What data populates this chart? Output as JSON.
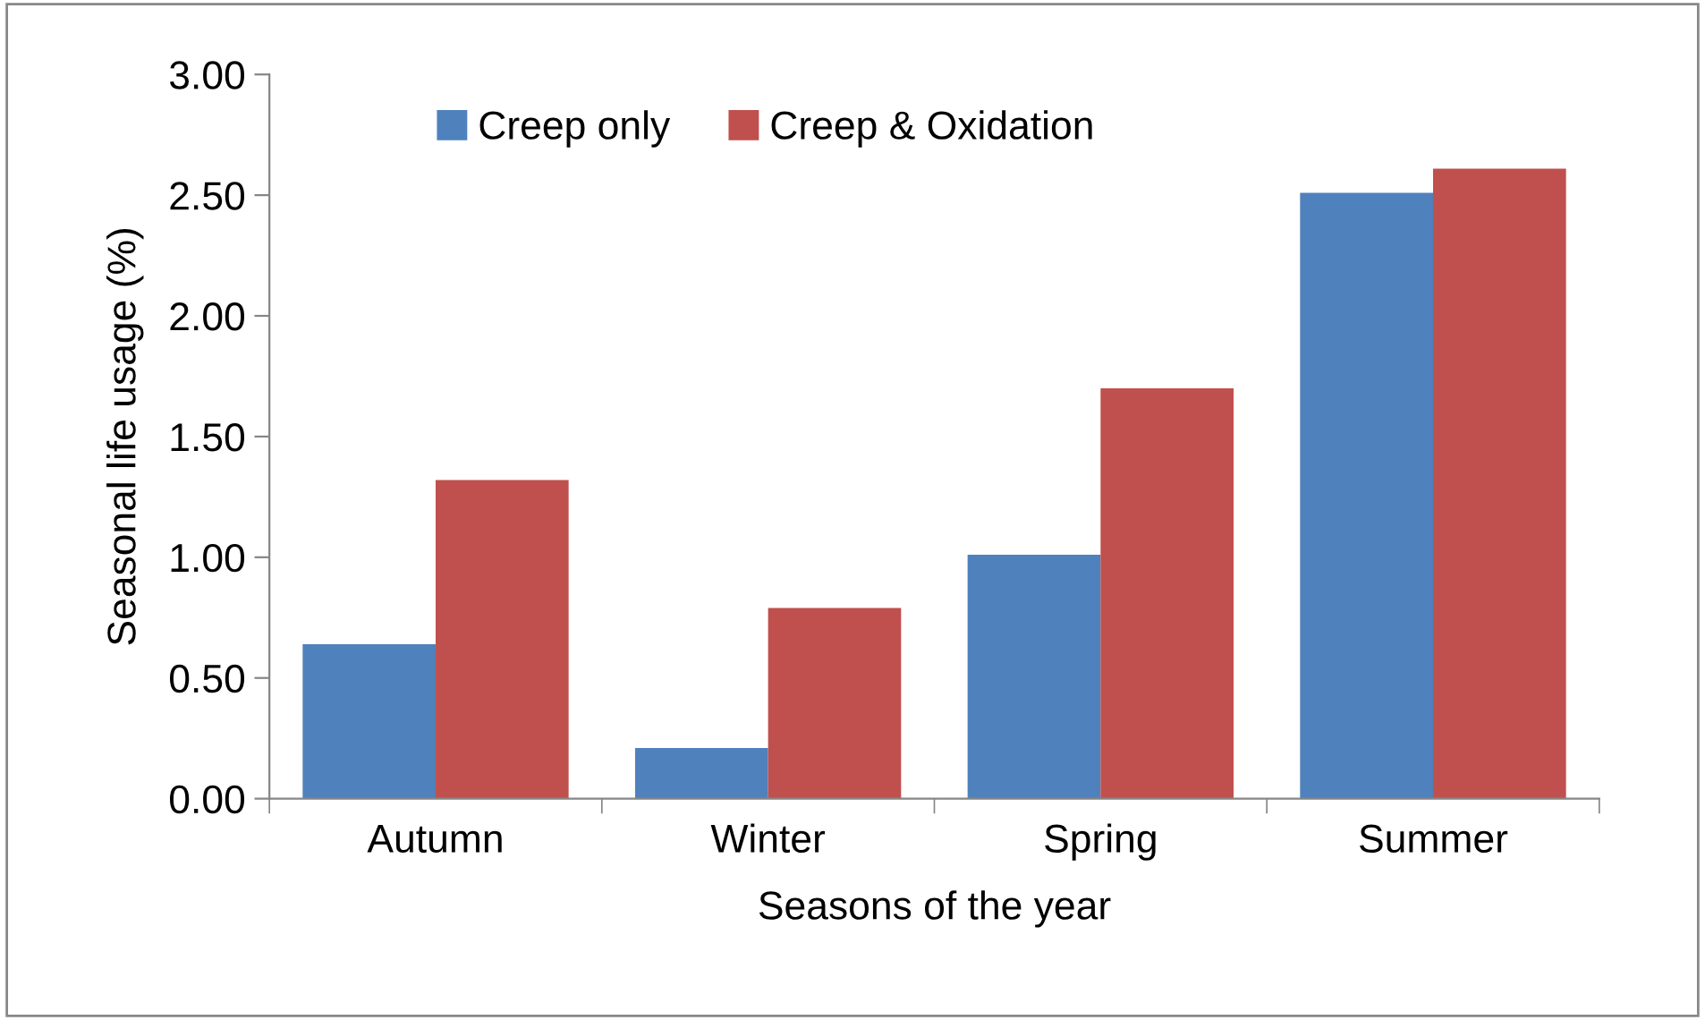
{
  "chart_data": {
    "type": "bar",
    "xlabel": "Seasons of the year",
    "ylabel": "Seasonal life usage (%)",
    "categories": [
      "Autumn",
      "Winter",
      "Spring",
      "Summer"
    ],
    "series": [
      {
        "name": "Creep only",
        "color": "#4f81bd",
        "values": [
          0.64,
          0.21,
          1.01,
          2.51
        ]
      },
      {
        "name": "Creep & Oxidation",
        "color": "#c0504d",
        "values": [
          1.32,
          0.79,
          1.7,
          2.61
        ]
      }
    ],
    "ylim": [
      0,
      3
    ],
    "yticks": [
      {
        "value": 0,
        "label": "0.00"
      },
      {
        "value": 0.5,
        "label": "0.50"
      },
      {
        "value": 1,
        "label": "1.00"
      },
      {
        "value": 1.5,
        "label": "1.50"
      },
      {
        "value": 2,
        "label": "2.00"
      },
      {
        "value": 2.5,
        "label": "2.50"
      },
      {
        "value": 3,
        "label": "3.00"
      }
    ],
    "grid": false,
    "legend": "top left"
  }
}
